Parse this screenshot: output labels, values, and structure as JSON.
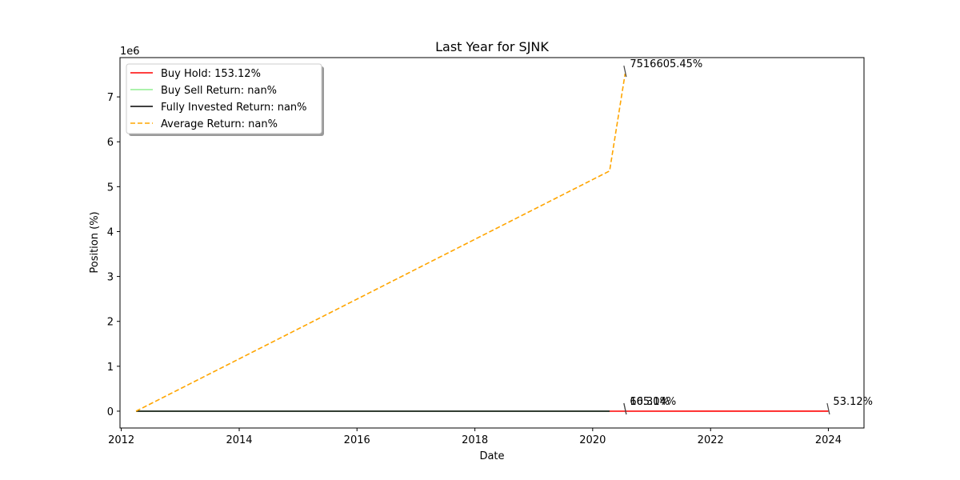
{
  "chart_data": {
    "type": "line",
    "title": "Last Year for SJNK",
    "xlabel": "Date",
    "ylabel": "Position (%)",
    "y_offset_label": "1e6",
    "xlim": [
      "2011-12-24",
      "2024-08-09"
    ],
    "ylim": [
      -375000,
      7875000
    ],
    "x_tick_labels": [
      "2012",
      "2014",
      "2016",
      "2018",
      "2020",
      "2022",
      "2024"
    ],
    "x_tick_dates": [
      "2012-01-01",
      "2014-01-01",
      "2016-01-01",
      "2018-01-01",
      "2020-01-01",
      "2022-01-01",
      "2024-01-01"
    ],
    "y_tick_labels": [
      "0",
      "1",
      "2",
      "3",
      "4",
      "5",
      "6",
      "7"
    ],
    "y_tick_values": [
      0,
      1000000,
      2000000,
      3000000,
      4000000,
      5000000,
      6000000,
      7000000
    ],
    "grid": false,
    "legend_position": "top-left",
    "series": [
      {
        "name": "Buy Hold: 153.12%",
        "color": "#ff0000",
        "dash": "solid",
        "points": [
          [
            "2020-04-15",
            0
          ],
          [
            "2024-01-01",
            153.12
          ]
        ]
      },
      {
        "name": "Buy Sell Return: nan%",
        "color": "#90ee90",
        "dash": "solid",
        "points": [
          [
            "2012-04-01",
            0
          ],
          [
            "2020-04-15",
            0
          ]
        ]
      },
      {
        "name": "Fully Invested Return: nan%",
        "color": "#000000",
        "dash": "solid",
        "points": [
          [
            "2012-04-01",
            0
          ],
          [
            "2020-04-15",
            0
          ]
        ]
      },
      {
        "name": "Average Return: nan%",
        "color": "#ffa500",
        "dash": "dashed",
        "points": [
          [
            "2012-04-01",
            0
          ],
          [
            "2020-04-15",
            5350000
          ],
          [
            "2020-07-20",
            7516605.45
          ]
        ]
      }
    ],
    "annotations": [
      {
        "text": "7516605.45%",
        "x": "2020-07-20",
        "y": 7516605.45
      },
      {
        "text": "165.14%",
        "x": "2020-07-20",
        "y": 165.14
      },
      {
        "text": "60.30%",
        "x": "2020-07-20",
        "y": 60.3
      },
      {
        "text": "53.12%",
        "x": "2024-01-01",
        "y": 53.12
      }
    ]
  }
}
